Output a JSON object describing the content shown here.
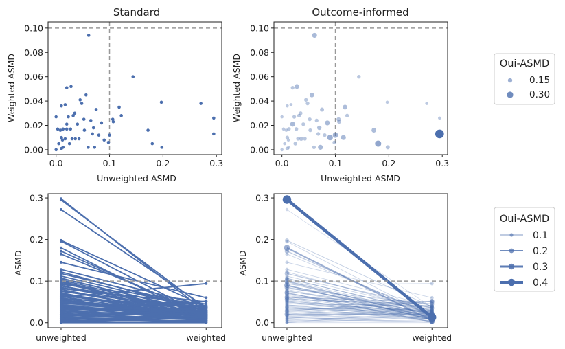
{
  "colors": {
    "point": "#4c6fae",
    "ref_line": "#999999"
  },
  "legends": {
    "top": {
      "title": "Oui-ASMD",
      "entries": [
        {
          "label": "0.15"
        },
        {
          "label": "0.30"
        }
      ]
    },
    "bottom": {
      "title": "Oui-ASMD",
      "entries": [
        {
          "label": "0.1"
        },
        {
          "label": "0.2"
        },
        {
          "label": "0.3"
        },
        {
          "label": "0.4"
        }
      ]
    }
  },
  "chart_data": [
    {
      "type": "scatter",
      "title": "Standard",
      "xlabel": "Unweighted ASMD",
      "ylabel": "Weighted ASMD",
      "xlim": [
        -0.015,
        0.31
      ],
      "ylim": [
        -0.004,
        0.105
      ],
      "xticks": [
        "0.0",
        "0.1",
        "0.2",
        "0.3"
      ],
      "yticks": [
        "0.00",
        "0.02",
        "0.04",
        "0.06",
        "0.08",
        "0.10"
      ],
      "ref_lines": {
        "x": 0.1,
        "y": 0.1
      },
      "points": [
        {
          "x": 0.061,
          "y": 0.094
        },
        {
          "x": 0.144,
          "y": 0.06
        },
        {
          "x": 0.02,
          "y": 0.051
        },
        {
          "x": 0.028,
          "y": 0.052
        },
        {
          "x": 0.056,
          "y": 0.045
        },
        {
          "x": 0.045,
          "y": 0.041
        },
        {
          "x": 0.048,
          "y": 0.038
        },
        {
          "x": 0.01,
          "y": 0.036
        },
        {
          "x": 0.017,
          "y": 0.037
        },
        {
          "x": 0.118,
          "y": 0.035
        },
        {
          "x": 0.075,
          "y": 0.033
        },
        {
          "x": 0.032,
          "y": 0.028
        },
        {
          "x": 0.035,
          "y": 0.03
        },
        {
          "x": 0.0,
          "y": 0.027
        },
        {
          "x": 0.023,
          "y": 0.027
        },
        {
          "x": 0.106,
          "y": 0.025
        },
        {
          "x": 0.122,
          "y": 0.028
        },
        {
          "x": 0.197,
          "y": 0.039
        },
        {
          "x": 0.271,
          "y": 0.038
        },
        {
          "x": 0.295,
          "y": 0.026
        },
        {
          "x": 0.052,
          "y": 0.025
        },
        {
          "x": 0.065,
          "y": 0.024
        },
        {
          "x": 0.107,
          "y": 0.023
        },
        {
          "x": 0.085,
          "y": 0.022
        },
        {
          "x": 0.02,
          "y": 0.021
        },
        {
          "x": 0.04,
          "y": 0.021
        },
        {
          "x": 0.07,
          "y": 0.018
        },
        {
          "x": 0.027,
          "y": 0.017
        },
        {
          "x": 0.003,
          "y": 0.017
        },
        {
          "x": 0.013,
          "y": 0.017
        },
        {
          "x": 0.008,
          "y": 0.016
        },
        {
          "x": 0.02,
          "y": 0.017
        },
        {
          "x": 0.053,
          "y": 0.016
        },
        {
          "x": 0.172,
          "y": 0.016
        },
        {
          "x": 0.068,
          "y": 0.013
        },
        {
          "x": 0.08,
          "y": 0.012
        },
        {
          "x": 0.1,
          "y": 0.012
        },
        {
          "x": 0.295,
          "y": 0.013
        },
        {
          "x": 0.01,
          "y": 0.01
        },
        {
          "x": 0.03,
          "y": 0.009
        },
        {
          "x": 0.043,
          "y": 0.009
        },
        {
          "x": 0.012,
          "y": 0.008
        },
        {
          "x": 0.017,
          "y": 0.009
        },
        {
          "x": 0.036,
          "y": 0.009
        },
        {
          "x": 0.09,
          "y": 0.008
        },
        {
          "x": 0.005,
          "y": 0.005
        },
        {
          "x": 0.025,
          "y": 0.005
        },
        {
          "x": 0.098,
          "y": 0.006
        },
        {
          "x": 0.18,
          "y": 0.005
        },
        {
          "x": 0.013,
          "y": 0.002
        },
        {
          "x": 0.06,
          "y": 0.002
        },
        {
          "x": 0.072,
          "y": 0.002
        },
        {
          "x": 0.198,
          "y": 0.002
        },
        {
          "x": 0.0,
          "y": 0.0
        },
        {
          "x": 0.01,
          "y": 0.001
        }
      ]
    },
    {
      "type": "scatter",
      "title": "Outcome-informed",
      "xlabel": "Unweighted ASMD",
      "ylabel": "Weighted ASMD",
      "xlim": [
        -0.015,
        0.31
      ],
      "ylim": [
        -0.004,
        0.105
      ],
      "xticks": [
        "0.0",
        "0.1",
        "0.2",
        "0.3"
      ],
      "yticks": [
        "0.00",
        "0.02",
        "0.04",
        "0.06",
        "0.08",
        "0.10"
      ],
      "ref_lines": {
        "x": 0.1,
        "y": 0.1
      },
      "points": [
        {
          "x": 0.061,
          "y": 0.094,
          "s": 0.06
        },
        {
          "x": 0.144,
          "y": 0.06,
          "s": 0.02
        },
        {
          "x": 0.02,
          "y": 0.051,
          "s": 0.02
        },
        {
          "x": 0.028,
          "y": 0.052,
          "s": 0.05
        },
        {
          "x": 0.056,
          "y": 0.045,
          "s": 0.05
        },
        {
          "x": 0.045,
          "y": 0.041,
          "s": 0.02
        },
        {
          "x": 0.048,
          "y": 0.038,
          "s": 0.02
        },
        {
          "x": 0.01,
          "y": 0.036,
          "s": 0.01
        },
        {
          "x": 0.017,
          "y": 0.037,
          "s": 0.01
        },
        {
          "x": 0.118,
          "y": 0.035,
          "s": 0.05
        },
        {
          "x": 0.075,
          "y": 0.033,
          "s": 0.03
        },
        {
          "x": 0.032,
          "y": 0.028,
          "s": 0.02
        },
        {
          "x": 0.035,
          "y": 0.03,
          "s": 0.02
        },
        {
          "x": 0.0,
          "y": 0.027,
          "s": 0.01
        },
        {
          "x": 0.023,
          "y": 0.027,
          "s": 0.02
        },
        {
          "x": 0.106,
          "y": 0.025,
          "s": 0.03
        },
        {
          "x": 0.122,
          "y": 0.028,
          "s": 0.02
        },
        {
          "x": 0.197,
          "y": 0.039,
          "s": 0.01
        },
        {
          "x": 0.271,
          "y": 0.038,
          "s": 0.01
        },
        {
          "x": 0.295,
          "y": 0.026,
          "s": 0.01
        },
        {
          "x": 0.052,
          "y": 0.025,
          "s": 0.02
        },
        {
          "x": 0.065,
          "y": 0.024,
          "s": 0.02
        },
        {
          "x": 0.107,
          "y": 0.023,
          "s": 0.03
        },
        {
          "x": 0.085,
          "y": 0.022,
          "s": 0.06
        },
        {
          "x": 0.02,
          "y": 0.021,
          "s": 0.06
        },
        {
          "x": 0.04,
          "y": 0.021,
          "s": 0.02
        },
        {
          "x": 0.07,
          "y": 0.018,
          "s": 0.04
        },
        {
          "x": 0.027,
          "y": 0.017,
          "s": 0.02
        },
        {
          "x": 0.003,
          "y": 0.017,
          "s": 0.01
        },
        {
          "x": 0.013,
          "y": 0.017,
          "s": 0.02
        },
        {
          "x": 0.008,
          "y": 0.016,
          "s": 0.01
        },
        {
          "x": 0.053,
          "y": 0.016,
          "s": 0.02
        },
        {
          "x": 0.172,
          "y": 0.016,
          "s": 0.05
        },
        {
          "x": 0.068,
          "y": 0.013,
          "s": 0.02
        },
        {
          "x": 0.08,
          "y": 0.012,
          "s": 0.02
        },
        {
          "x": 0.1,
          "y": 0.012,
          "s": 0.08
        },
        {
          "x": 0.295,
          "y": 0.013,
          "s": 0.3
        },
        {
          "x": 0.01,
          "y": 0.01,
          "s": 0.02
        },
        {
          "x": 0.03,
          "y": 0.009,
          "s": 0.02
        },
        {
          "x": 0.043,
          "y": 0.009,
          "s": 0.02
        },
        {
          "x": 0.012,
          "y": 0.008,
          "s": 0.01
        },
        {
          "x": 0.036,
          "y": 0.009,
          "s": 0.03
        },
        {
          "x": 0.09,
          "y": 0.01,
          "s": 0.09
        },
        {
          "x": 0.115,
          "y": 0.01,
          "s": 0.06
        },
        {
          "x": 0.005,
          "y": 0.005,
          "s": 0.01
        },
        {
          "x": 0.025,
          "y": 0.005,
          "s": 0.02
        },
        {
          "x": 0.098,
          "y": 0.006,
          "s": 0.02
        },
        {
          "x": 0.18,
          "y": 0.005,
          "s": 0.12
        },
        {
          "x": 0.013,
          "y": 0.002,
          "s": 0.01
        },
        {
          "x": 0.06,
          "y": 0.002,
          "s": 0.02
        },
        {
          "x": 0.072,
          "y": 0.002,
          "s": 0.06
        },
        {
          "x": 0.198,
          "y": 0.002,
          "s": 0.03
        },
        {
          "x": 0.0,
          "y": 0.0,
          "s": 0.01
        },
        {
          "x": 0.01,
          "y": 0.001,
          "s": 0.02
        }
      ]
    },
    {
      "type": "line",
      "xlabel": "",
      "ylabel": "ASMD",
      "categories": [
        "unweighted",
        "weighted"
      ],
      "ylim": [
        -0.012,
        0.31
      ],
      "yticks": [
        "0.0",
        "0.1",
        "0.2",
        "0.3"
      ],
      "ref_lines": {
        "y": 0.1
      },
      "pairs": [
        [
          0.298,
          0.025
        ],
        [
          0.295,
          0.033
        ],
        [
          0.272,
          0.037
        ],
        [
          0.198,
          0.038
        ],
        [
          0.196,
          0.015
        ],
        [
          0.18,
          0.005
        ],
        [
          0.172,
          0.016
        ],
        [
          0.165,
          0.02
        ],
        [
          0.145,
          0.06
        ],
        [
          0.128,
          0.04
        ],
        [
          0.122,
          0.028
        ],
        [
          0.118,
          0.035
        ],
        [
          0.112,
          0.03
        ],
        [
          0.107,
          0.023
        ],
        [
          0.106,
          0.025
        ],
        [
          0.103,
          0.018
        ],
        [
          0.1,
          0.012
        ],
        [
          0.098,
          0.006
        ],
        [
          0.095,
          0.02
        ],
        [
          0.092,
          0.05
        ],
        [
          0.09,
          0.008
        ],
        [
          0.088,
          0.03
        ],
        [
          0.085,
          0.022
        ],
        [
          0.082,
          0.045
        ],
        [
          0.08,
          0.012
        ],
        [
          0.077,
          0.015
        ],
        [
          0.075,
          0.033
        ],
        [
          0.072,
          0.002
        ],
        [
          0.07,
          0.018
        ],
        [
          0.068,
          0.013
        ],
        [
          0.065,
          0.024
        ],
        [
          0.063,
          0.01
        ],
        [
          0.061,
          0.094
        ],
        [
          0.06,
          0.002
        ],
        [
          0.058,
          0.04
        ],
        [
          0.056,
          0.045
        ],
        [
          0.055,
          0.02
        ],
        [
          0.053,
          0.016
        ],
        [
          0.052,
          0.025
        ],
        [
          0.05,
          0.012
        ],
        [
          0.048,
          0.038
        ],
        [
          0.046,
          0.028
        ],
        [
          0.045,
          0.041
        ],
        [
          0.043,
          0.009
        ],
        [
          0.042,
          0.03
        ],
        [
          0.04,
          0.021
        ],
        [
          0.038,
          0.017
        ],
        [
          0.036,
          0.009
        ],
        [
          0.035,
          0.03
        ],
        [
          0.033,
          0.035
        ],
        [
          0.032,
          0.028
        ],
        [
          0.03,
          0.009
        ],
        [
          0.028,
          0.052
        ],
        [
          0.027,
          0.017
        ],
        [
          0.025,
          0.005
        ],
        [
          0.023,
          0.027
        ],
        [
          0.02,
          0.051
        ],
        [
          0.02,
          0.021
        ],
        [
          0.018,
          0.01
        ],
        [
          0.017,
          0.037
        ],
        [
          0.015,
          0.025
        ],
        [
          0.013,
          0.002
        ],
        [
          0.012,
          0.008
        ],
        [
          0.01,
          0.036
        ],
        [
          0.01,
          0.001
        ],
        [
          0.008,
          0.016
        ],
        [
          0.006,
          0.02
        ],
        [
          0.005,
          0.005
        ],
        [
          0.003,
          0.017
        ],
        [
          0.001,
          0.012
        ],
        [
          0.0,
          0.027
        ],
        [
          0.0,
          0.0
        ]
      ]
    },
    {
      "type": "line",
      "xlabel": "",
      "ylabel": "ASMD",
      "categories": [
        "unweighted",
        "weighted"
      ],
      "ylim": [
        -0.012,
        0.31
      ],
      "yticks": [
        "0.0",
        "0.1",
        "0.2",
        "0.3"
      ],
      "ref_lines": {
        "y": 0.1
      },
      "pairs": [
        [
          0.296,
          0.013,
          0.3
        ],
        [
          0.272,
          0.037,
          0.01
        ],
        [
          0.198,
          0.038,
          0.03
        ],
        [
          0.195,
          0.015,
          0.02
        ],
        [
          0.18,
          0.005,
          0.12
        ],
        [
          0.172,
          0.016,
          0.05
        ],
        [
          0.165,
          0.02,
          0.02
        ],
        [
          0.145,
          0.06,
          0.02
        ],
        [
          0.128,
          0.04,
          0.02
        ],
        [
          0.122,
          0.028,
          0.02
        ],
        [
          0.118,
          0.035,
          0.05
        ],
        [
          0.112,
          0.03,
          0.02
        ],
        [
          0.107,
          0.023,
          0.03
        ],
        [
          0.106,
          0.025,
          0.03
        ],
        [
          0.103,
          0.018,
          0.02
        ],
        [
          0.1,
          0.012,
          0.08
        ],
        [
          0.098,
          0.006,
          0.02
        ],
        [
          0.095,
          0.02,
          0.03
        ],
        [
          0.092,
          0.094,
          0.02
        ],
        [
          0.09,
          0.008,
          0.09
        ],
        [
          0.088,
          0.03,
          0.02
        ],
        [
          0.085,
          0.022,
          0.06
        ],
        [
          0.082,
          0.045,
          0.02
        ],
        [
          0.08,
          0.012,
          0.02
        ],
        [
          0.077,
          0.015,
          0.03
        ],
        [
          0.075,
          0.033,
          0.03
        ],
        [
          0.072,
          0.002,
          0.06
        ],
        [
          0.07,
          0.018,
          0.04
        ],
        [
          0.068,
          0.013,
          0.02
        ],
        [
          0.065,
          0.024,
          0.02
        ],
        [
          0.063,
          0.01,
          0.03
        ],
        [
          0.061,
          0.05,
          0.06
        ],
        [
          0.06,
          0.002,
          0.02
        ],
        [
          0.058,
          0.04,
          0.03
        ],
        [
          0.056,
          0.045,
          0.05
        ],
        [
          0.055,
          0.02,
          0.02
        ],
        [
          0.053,
          0.016,
          0.02
        ],
        [
          0.052,
          0.025,
          0.02
        ],
        [
          0.05,
          0.012,
          0.03
        ],
        [
          0.048,
          0.038,
          0.02
        ],
        [
          0.046,
          0.028,
          0.02
        ],
        [
          0.045,
          0.041,
          0.02
        ],
        [
          0.043,
          0.009,
          0.02
        ],
        [
          0.042,
          0.03,
          0.02
        ],
        [
          0.04,
          0.021,
          0.02
        ],
        [
          0.038,
          0.017,
          0.03
        ],
        [
          0.036,
          0.009,
          0.03
        ],
        [
          0.035,
          0.03,
          0.02
        ],
        [
          0.033,
          0.035,
          0.02
        ],
        [
          0.032,
          0.028,
          0.02
        ],
        [
          0.03,
          0.009,
          0.02
        ],
        [
          0.028,
          0.052,
          0.05
        ],
        [
          0.027,
          0.017,
          0.02
        ],
        [
          0.025,
          0.005,
          0.02
        ],
        [
          0.023,
          0.027,
          0.02
        ],
        [
          0.02,
          0.051,
          0.02
        ],
        [
          0.02,
          0.021,
          0.06
        ],
        [
          0.018,
          0.01,
          0.02
        ],
        [
          0.017,
          0.037,
          0.01
        ],
        [
          0.015,
          0.025,
          0.02
        ],
        [
          0.013,
          0.002,
          0.01
        ],
        [
          0.012,
          0.008,
          0.01
        ],
        [
          0.01,
          0.036,
          0.01
        ],
        [
          0.01,
          0.001,
          0.02
        ],
        [
          0.008,
          0.016,
          0.01
        ],
        [
          0.006,
          0.02,
          0.02
        ],
        [
          0.005,
          0.005,
          0.01
        ],
        [
          0.003,
          0.017,
          0.01
        ],
        [
          0.001,
          0.012,
          0.02
        ],
        [
          0.0,
          0.027,
          0.01
        ],
        [
          0.0,
          0.0,
          0.01
        ]
      ]
    }
  ]
}
